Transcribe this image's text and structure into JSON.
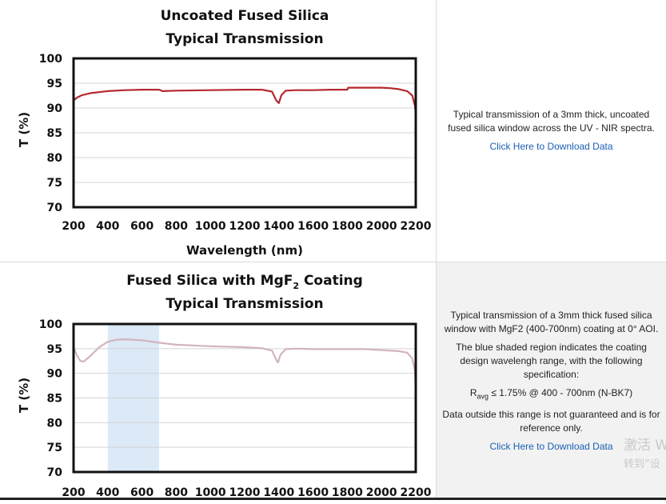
{
  "chart_data": [
    {
      "type": "line",
      "title_line1": "Uncoated Fused Silica",
      "title_line2": "Typical Transmission",
      "xlabel": "Wavelength (nm)",
      "ylabel": "T (%)",
      "xlim": [
        200,
        2200
      ],
      "ylim": [
        70,
        100
      ],
      "x_ticks": [
        "200",
        "400",
        "600",
        "800",
        "1000",
        "1200",
        "1400",
        "1600",
        "1800",
        "2000",
        "2200"
      ],
      "y_ticks": [
        "100",
        "95",
        "90",
        "85",
        "80",
        "75",
        "70"
      ],
      "grid": "horizontal",
      "series": [
        {
          "color": "#b5282e",
          "x": [
            200,
            220,
            250,
            300,
            400,
            500,
            600,
            700,
            720,
            800,
            1000,
            1200,
            1300,
            1360,
            1385,
            1400,
            1415,
            1440,
            1500,
            1600,
            1700,
            1800,
            1805,
            1900,
            2000,
            2050,
            2100,
            2150,
            2180,
            2195,
            2200
          ],
          "y": [
            91.5,
            92.1,
            92.6,
            93.0,
            93.4,
            93.6,
            93.7,
            93.7,
            93.4,
            93.5,
            93.6,
            93.7,
            93.7,
            93.3,
            91.5,
            91.0,
            92.6,
            93.5,
            93.6,
            93.6,
            93.7,
            93.7,
            94.1,
            94.1,
            94.1,
            94.0,
            93.8,
            93.4,
            92.5,
            90.5,
            88.8
          ]
        }
      ]
    },
    {
      "type": "line",
      "title_line1": "Fused Silica with MgF",
      "title_sub": "2",
      "title_suffix": " Coating",
      "title_line2": "Typical Transmission",
      "xlabel": "",
      "ylabel": "T (%)",
      "xlim": [
        200,
        2200
      ],
      "ylim": [
        70,
        100
      ],
      "x_ticks": [
        "200",
        "400",
        "600",
        "800",
        "1000",
        "1200",
        "1400",
        "1600",
        "1800",
        "2000",
        "2200"
      ],
      "y_ticks": [
        "100",
        "95",
        "90",
        "85",
        "80",
        "75",
        "70"
      ],
      "grid": "horizontal",
      "shaded_region": {
        "x": [
          400,
          700
        ],
        "color": "#dce9f6"
      },
      "series": [
        {
          "color": "#d2b4bd",
          "x": [
            200,
            210,
            220,
            240,
            260,
            300,
            350,
            400,
            450,
            500,
            600,
            700,
            800,
            1000,
            1200,
            1300,
            1360,
            1385,
            1395,
            1410,
            1440,
            1500,
            1600,
            1700,
            1800,
            1900,
            2000,
            2100,
            2150,
            2180,
            2195,
            2200
          ],
          "y": [
            95.2,
            94.5,
            93.6,
            92.5,
            92.4,
            93.6,
            95.3,
            96.4,
            96.8,
            96.9,
            96.7,
            96.2,
            95.8,
            95.5,
            95.3,
            95.1,
            94.6,
            92.7,
            92.2,
            93.8,
            94.9,
            95.0,
            94.9,
            94.9,
            94.9,
            94.9,
            94.7,
            94.5,
            94.2,
            93.0,
            90.5,
            87.0
          ]
        }
      ]
    }
  ],
  "row1": {
    "description": "Typical transmission of a 3mm thick, uncoated fused silica window across the UV - NIR spectra.",
    "download_label": "Click Here to Download Data"
  },
  "row2": {
    "description": "Typical transmission of a 3mm thick fused silica window with MgF2 (400-700nm) coating at 0° AOI.",
    "shaded_note": "The blue shaded region indicates the coating design wavelengh range, with the following specification:",
    "spec_symbol": "R",
    "spec_sub": "avg",
    "spec_rest": " ≤ 1.75% @ 400 - 700nm (N-BK7)",
    "disclaimer": "Data outside this range is not guaranteed and is for reference only.",
    "download_label": "Click Here to Download Data"
  },
  "watermark": {
    "line1": "激活 W",
    "line2": "转到“设"
  }
}
